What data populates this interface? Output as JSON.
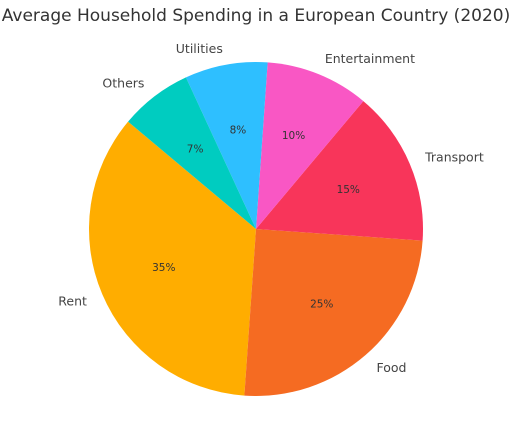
{
  "chart_data": {
    "type": "pie",
    "title": "Average Household Spending in a European Country (2020)",
    "categories": [
      "Rent",
      "Food",
      "Transport",
      "Entertainment",
      "Utilities",
      "Others"
    ],
    "values": [
      35,
      25,
      15,
      10,
      8,
      7
    ],
    "value_labels": [
      "35%",
      "25%",
      "15%",
      "10%",
      "8%",
      "7%"
    ],
    "colors": [
      "#FFAD00",
      "#F56B22",
      "#F8355A",
      "#F957C4",
      "#2EBFFF",
      "#00CCC0"
    ],
    "start_angle_deg": 140,
    "direction": "counterclockwise",
    "legend": "none"
  }
}
